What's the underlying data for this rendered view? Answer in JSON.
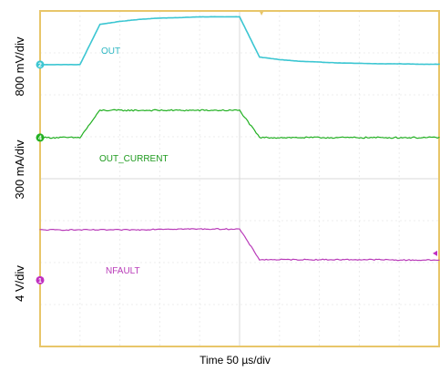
{
  "chart_data": {
    "type": "line",
    "x": [
      0,
      0.5,
      1,
      1.5,
      2,
      2.5,
      3,
      3.5,
      4,
      4.5,
      5,
      5.5,
      6,
      6.5,
      7,
      7.5,
      8,
      8.5,
      9,
      9.5,
      10
    ],
    "x_range": [
      0,
      10
    ],
    "y_range": [
      0,
      8
    ],
    "xlabel": "Time 50 µs/div",
    "grid": true,
    "series": [
      {
        "name": "OUT",
        "color": "#3cc6d2",
        "y_unit_label": "800 mV/div",
        "channel": "2",
        "values": [
          6.72,
          6.72,
          6.72,
          7.68,
          7.75,
          7.8,
          7.83,
          7.84,
          7.86,
          7.86,
          7.86,
          6.9,
          6.84,
          6.8,
          6.78,
          6.76,
          6.75,
          6.74,
          6.74,
          6.73,
          6.73
        ]
      },
      {
        "name": "OUT_CURRENT",
        "color": "#22b022",
        "y_unit_label": "300 mA/div",
        "channel": "4",
        "values": [
          4.98,
          4.98,
          4.98,
          5.63,
          5.63,
          5.63,
          5.63,
          5.63,
          5.63,
          5.63,
          5.63,
          4.98,
          4.98,
          4.98,
          4.98,
          4.98,
          4.98,
          4.98,
          4.98,
          4.98,
          4.98
        ]
      },
      {
        "name": "NFAULT",
        "color": "#b93cb9",
        "y_unit_label": "4 V/div",
        "channel": "1",
        "values": [
          2.78,
          2.78,
          2.78,
          2.78,
          2.78,
          2.78,
          2.8,
          2.8,
          2.8,
          2.8,
          2.8,
          2.07,
          2.07,
          2.07,
          2.07,
          2.07,
          2.07,
          2.07,
          2.06,
          2.06,
          2.06
        ]
      }
    ]
  },
  "colors": {
    "grid_border": "#e8c66a",
    "grid_lines": "#ececec",
    "trigger_marker": "#e8c66a"
  },
  "channel_markers": [
    {
      "label": "2",
      "color": "#3cc6d2"
    },
    {
      "label": "4",
      "color": "#22b022"
    },
    {
      "label": "1",
      "color": "#c02fc0"
    }
  ]
}
